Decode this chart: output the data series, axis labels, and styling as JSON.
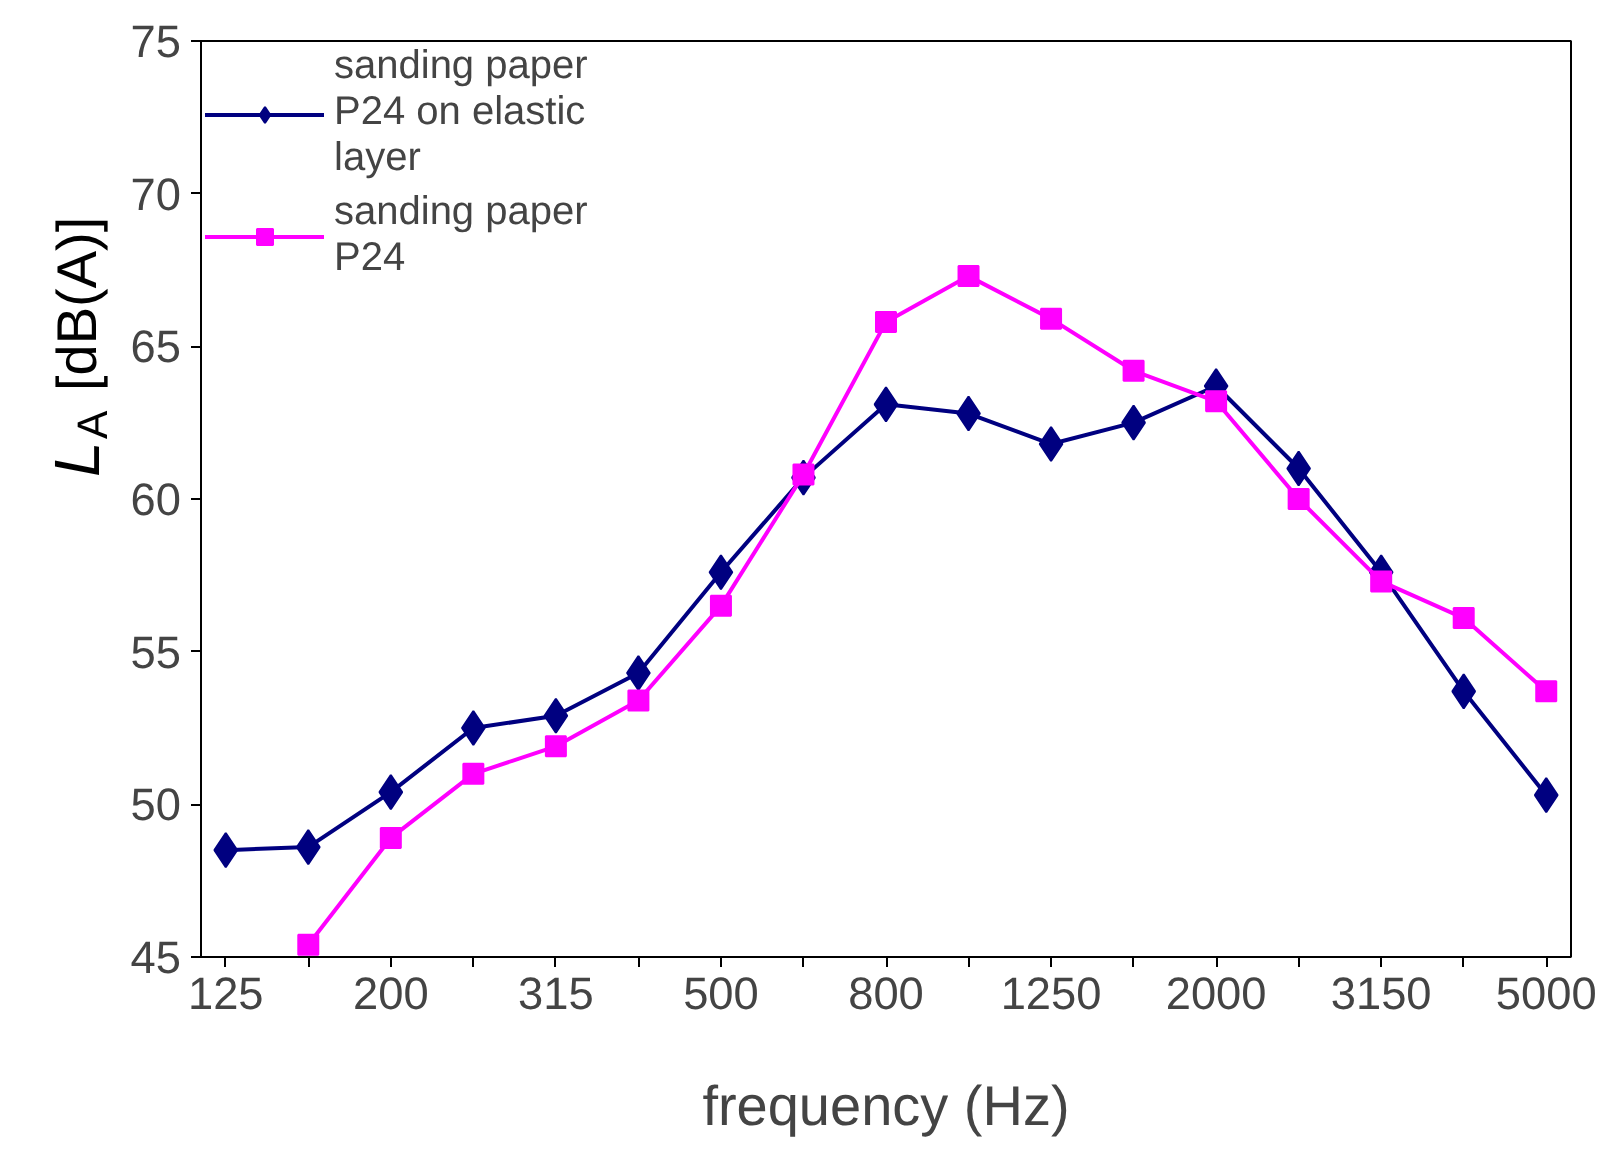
{
  "chart_data": {
    "type": "line",
    "xlabel": "frequency (Hz)",
    "ylabel": "L$_{A}$ [dB(A)]",
    "categories": [
      "125",
      null,
      "200",
      null,
      "315",
      null,
      "500",
      null,
      "800",
      null,
      "1250",
      null,
      "2000",
      null,
      "3150",
      null,
      "5000"
    ],
    "series": [
      {
        "name": "sanding paper P24 on elastic layer",
        "color": "#000080",
        "marker": "diamond",
        "values": [
          48.5,
          48.6,
          50.4,
          52.5,
          52.9,
          54.3,
          57.6,
          60.7,
          63.1,
          62.8,
          61.8,
          62.5,
          63.7,
          61.0,
          57.6,
          53.7,
          50.3
        ]
      },
      {
        "name": "sanding paper P24",
        "color": "#ff00ff",
        "marker": "square",
        "values": [
          null,
          45.4,
          48.9,
          51.0,
          51.9,
          53.4,
          56.5,
          60.8,
          65.8,
          67.3,
          65.9,
          64.2,
          63.2,
          60.0,
          57.3,
          56.1,
          53.7
        ]
      }
    ],
    "ylim": [
      45,
      75
    ],
    "yticks": [
      45,
      50,
      55,
      60,
      65,
      70,
      75
    ],
    "grid": false,
    "legend": "top left",
    "line_style": "solid"
  }
}
